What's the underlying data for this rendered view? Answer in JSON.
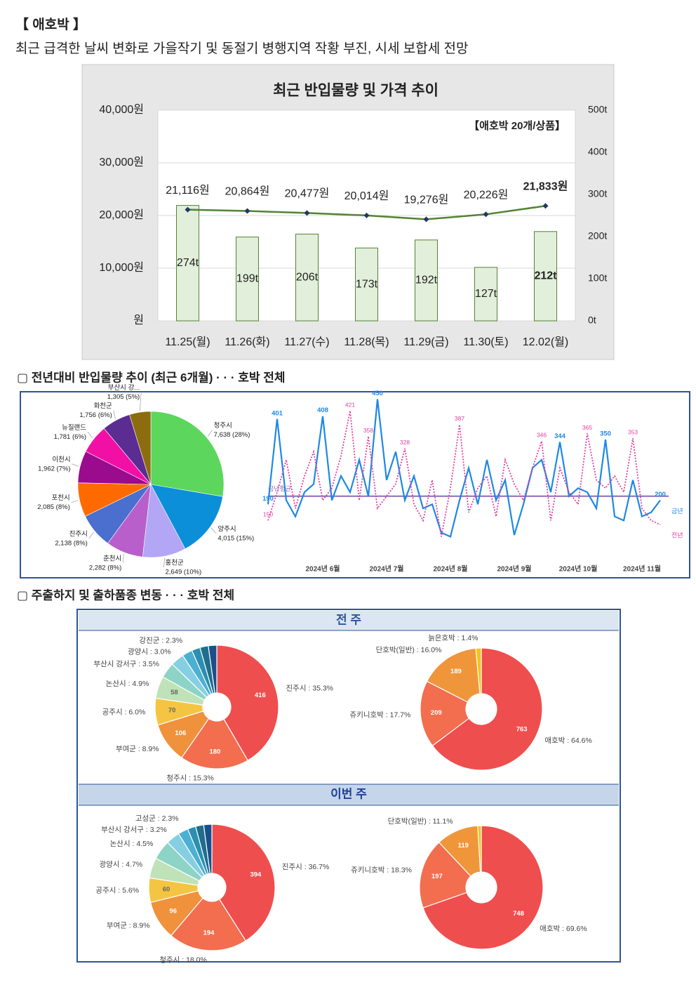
{
  "header": {
    "title": "【 애호박 】",
    "subtitle": "최근 급격한 날씨 변화로 가을작기 및 동절기 병행지역 작황 부진, 시세 보합세 전망"
  },
  "sections": [
    "▢ 전년대비 반입물량 추이 (최근 6개월) · · · 호박 전체",
    "▢ 주출하지 및 출하품종 변동 · · · 호박 전체"
  ],
  "panels": [
    "전 주",
    "이번 주"
  ],
  "chart_data": [
    {
      "type": "combo",
      "title": "최근 반입물량 및 가격 추이",
      "annotation": "【애호박 20개/상품】",
      "categories": [
        "11.25(월)",
        "11.26(화)",
        "11.27(수)",
        "11.28(목)",
        "11.29(금)",
        "11.30(토)",
        "12.02(월)"
      ],
      "series": [
        {
          "kind": "bar",
          "axis": "y2",
          "color": "#e2efda",
          "edge_color": "#548235",
          "values": [
            274,
            199,
            206,
            173,
            192,
            127,
            212
          ],
          "value_labels": [
            "274t",
            "199t",
            "206t",
            "173t",
            "192t",
            "127t",
            "212t"
          ]
        },
        {
          "kind": "line",
          "color": "#548235",
          "marker_color": "#1f3864",
          "values": [
            21116,
            20864,
            20477,
            20014,
            19276,
            20226,
            21833
          ],
          "value_labels": [
            "21,116원",
            "20,864원",
            "20,477원",
            "20,014원",
            "19,276원",
            "20,226원",
            "21,833원"
          ]
        }
      ],
      "ylim": [
        0,
        40000
      ],
      "yticks": [
        {
          "value": 0,
          "label": "원"
        },
        {
          "value": 10000,
          "label": "10,000원"
        },
        {
          "value": 20000,
          "label": "20,000원"
        },
        {
          "value": 30000,
          "label": "30,000원"
        },
        {
          "value": 40000,
          "label": "40,000원"
        }
      ],
      "y2lim": [
        0,
        500
      ],
      "y2ticks": [
        {
          "value": 0,
          "label": "0t"
        },
        {
          "value": 100,
          "label": "100t"
        },
        {
          "value": 200,
          "label": "200t"
        },
        {
          "value": 300,
          "label": "300t"
        },
        {
          "value": 400,
          "label": "400t"
        },
        {
          "value": 500,
          "label": "500t"
        }
      ],
      "grid": true
    },
    {
      "type": "pie",
      "categories": [
        "청주시",
        "양주시",
        "홍천군",
        "춘천시",
        "진주시",
        "포천시",
        "이천시",
        "뉴질랜드",
        "화천군",
        "부산시 강..."
      ],
      "values": [
        7638,
        4015,
        2649,
        2282,
        2138,
        2085,
        1962,
        1781,
        1756,
        1305
      ],
      "value_labels": [
        "7,638 (28%)",
        "4,015 (15%)",
        "2,649 (10%)",
        "2,282 (8%)",
        "2,138 (8%)",
        "2,085 (8%)",
        "1,962 (7%)",
        "1,781 (6%)",
        "1,756 (6%)",
        "1,305 (5%)"
      ],
      "colors": [
        "#5cd65c",
        "#0b8fd8",
        "#b3a6f5",
        "#b95fcb",
        "#4a6fcf",
        "#ff6a00",
        "#9a0b8e",
        "#f20fa6",
        "#5b2c92",
        "#8d6c0f"
      ]
    },
    {
      "type": "line",
      "categories": [
        null,
        null,
        null,
        null,
        null,
        null,
        "2024년 6월",
        null,
        null,
        null,
        null,
        null,
        null,
        "2024년 7월",
        null,
        null,
        null,
        null,
        null,
        null,
        "2024년 8월",
        null,
        null,
        null,
        null,
        null,
        null,
        "2024년 9월",
        null,
        null,
        null,
        null,
        null,
        null,
        "2024년 10월",
        null,
        null,
        null,
        null,
        null,
        null,
        "2024년 11월",
        null,
        null
      ],
      "series": [
        {
          "name": "금년",
          "color": "#1e88e5",
          "values": [
            190,
            401,
            200,
            160,
            220,
            240,
            408,
            200,
            260,
            220,
            300,
            210,
            450,
            250,
            320,
            200,
            260,
            180,
            190,
            120,
            110,
            200,
            280,
            190,
            300,
            200,
            250,
            114,
            190,
            280,
            300,
            220,
            344,
            210,
            230,
            220,
            180,
            350,
            160,
            150,
            250,
            160,
            170,
            200
          ],
          "value_labels": [
            "190",
            "401",
            null,
            null,
            null,
            null,
            "408",
            null,
            null,
            null,
            null,
            null,
            "450",
            null,
            null,
            null,
            null,
            null,
            null,
            null,
            null,
            null,
            null,
            null,
            null,
            null,
            null,
            null,
            null,
            null,
            null,
            null,
            "344",
            null,
            null,
            null,
            null,
            "350",
            null,
            null,
            null,
            null,
            null,
            "200"
          ]
        },
        {
          "name": "전년",
          "color": "#e040a0",
          "dashed": true,
          "values": [
            150,
            220,
            300,
            180,
            260,
            320,
            200,
            230,
            310,
            421,
            200,
            358,
            180,
            210,
            240,
            328,
            190,
            150,
            250,
            110,
            230,
            387,
            170,
            230,
            260,
            160,
            300,
            240,
            200,
            280,
            346,
            150,
            280,
            220,
            190,
            365,
            250,
            230,
            260,
            220,
            353,
            180,
            150,
            140
          ],
          "value_labels": [
            "150",
            null,
            null,
            null,
            null,
            null,
            null,
            null,
            null,
            "421",
            null,
            "358",
            null,
            null,
            null,
            "328",
            null,
            null,
            null,
            null,
            null,
            "387",
            null,
            null,
            null,
            null,
            null,
            null,
            null,
            null,
            "346",
            null,
            null,
            null,
            null,
            "365",
            null,
            null,
            null,
            null,
            "353",
            null,
            null,
            null
          ]
        }
      ],
      "ylim": [
        50,
        470
      ],
      "reference_line": {
        "label": "금년평균",
        "value": 210,
        "color": "#8e6bb5"
      }
    },
    {
      "type": "donut",
      "values": [
        416,
        180,
        106,
        70,
        58,
        41,
        35,
        27,
        22,
        22,
        22
      ],
      "value_labels": [
        "416",
        "180",
        "106",
        "70",
        "58",
        null,
        null,
        null,
        null,
        null,
        null
      ],
      "labels": [
        "진주시 : 35.3%",
        "청주시 : 15.3%",
        "부여군 : 8.9%",
        "공주시 : 6.0%",
        "논산시 : 4.9%",
        "부산시 강서구 : 3.5%",
        "광양시 : 3.0%",
        "강진군 : 2.3%",
        null,
        null,
        null
      ],
      "colors": [
        "#ef4e4e",
        "#f26e4f",
        "#f0913b",
        "#f4c542",
        "#bfe2b8",
        "#8dd3c6",
        "#86cfe2",
        "#4bb0d1",
        "#2b8fb1",
        "#1f6e8c",
        "#1a4f8a"
      ]
    },
    {
      "type": "donut",
      "values": [
        763,
        209,
        189,
        17
      ],
      "value_labels": [
        "763",
        "209",
        "189",
        null
      ],
      "labels": [
        "애호박 : 64.6%",
        "쥬키니호박 : 17.7%",
        "단호박(일반) : 16.0%",
        "늙은호박 : 1.4%"
      ],
      "colors": [
        "#ef4e4e",
        "#f26e4f",
        "#f0963a",
        "#f4c518"
      ]
    },
    {
      "type": "donut",
      "values": [
        394,
        194,
        96,
        60,
        50,
        48,
        34,
        25,
        20,
        20,
        20
      ],
      "value_labels": [
        "394",
        "194",
        "96",
        "60",
        null,
        null,
        null,
        null,
        null,
        null,
        null
      ],
      "labels": [
        "진주시 : 36.7%",
        "청주시 : 18.0%",
        "부여군 : 8.9%",
        "공주시 : 5.6%",
        "광양시 : 4.7%",
        "논산시 : 4.5%",
        "부산시 강서구 : 3.2%",
        "고성군 : 2.3%",
        null,
        null,
        null
      ],
      "colors": [
        "#ef4e4e",
        "#f26e4f",
        "#f0913b",
        "#f4c542",
        "#bfe2b8",
        "#8dd3c6",
        "#86cfe2",
        "#4bb0d1",
        "#2b8fb1",
        "#1f6e8c",
        "#1a4f8a"
      ]
    },
    {
      "type": "donut",
      "values": [
        748,
        197,
        119,
        10
      ],
      "value_labels": [
        "748",
        "197",
        "119",
        null
      ],
      "labels": [
        "애호박 : 69.6%",
        "쥬키니호박 : 18.3%",
        "단호박(일반) : 11.1%",
        null
      ],
      "colors": [
        "#ef4e4e",
        "#f26e4f",
        "#f0963a",
        "#f4c518"
      ]
    }
  ]
}
